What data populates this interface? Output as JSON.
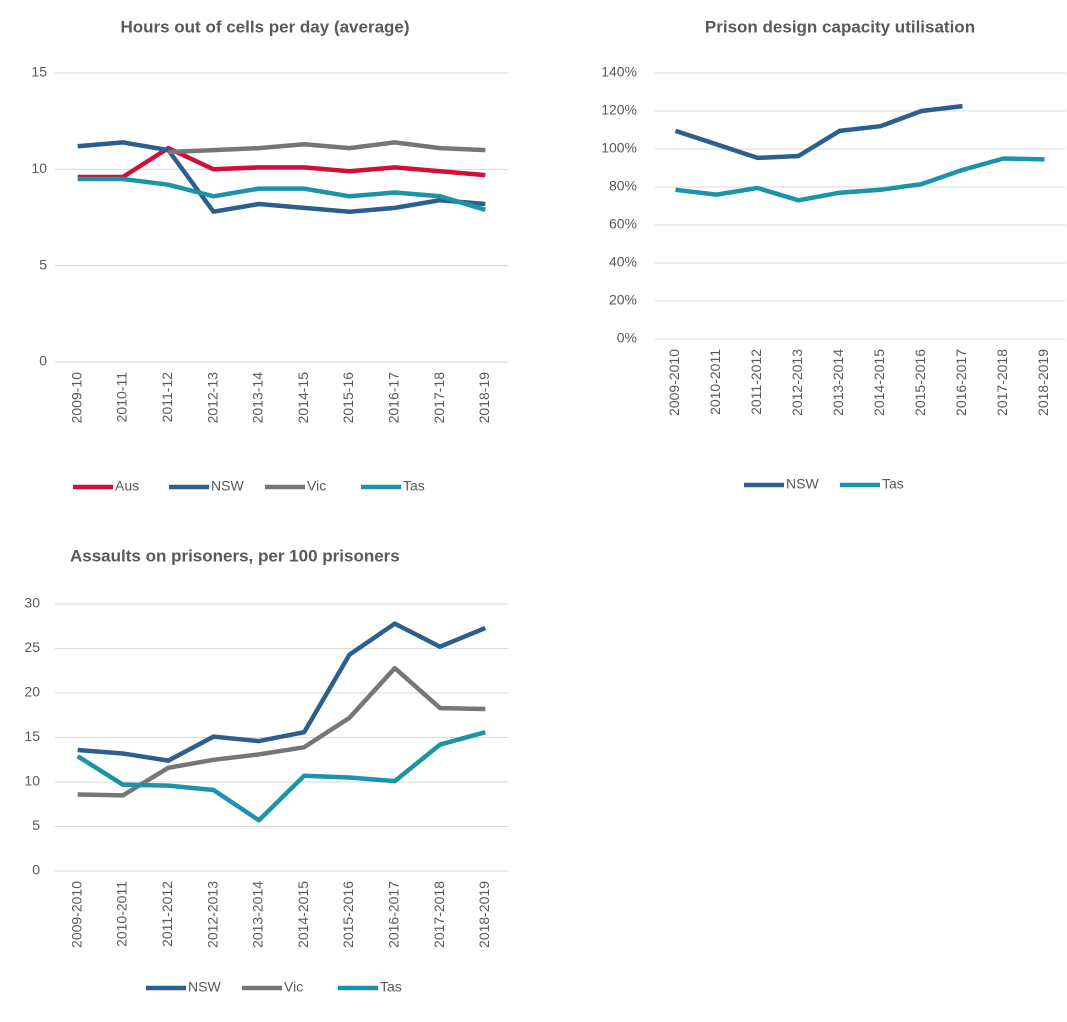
{
  "chart_data": [
    {
      "type": "line",
      "title": "Hours out of cells per day (average)",
      "categories": [
        "2009-10",
        "2010-11",
        "2011-12",
        "2012-13",
        "2013-14",
        "2014-15",
        "2015-16",
        "2016-17",
        "2017-18",
        "2018-19"
      ],
      "ylim": [
        0,
        15
      ],
      "yticks": [
        0,
        5,
        10,
        15
      ],
      "grid": true,
      "legend": "bottom",
      "series": [
        {
          "name": "Aus",
          "color": "#d0103a",
          "values": [
            9.6,
            9.6,
            11.1,
            10.0,
            10.1,
            10.1,
            9.9,
            10.1,
            9.9,
            9.7
          ]
        },
        {
          "name": "NSW",
          "color": "#2d5f8e",
          "values": [
            11.2,
            11.4,
            11.0,
            7.8,
            8.2,
            8.0,
            7.8,
            8.0,
            8.4,
            8.2
          ]
        },
        {
          "name": "Vic",
          "color": "#767676",
          "values": [
            null,
            null,
            10.9,
            11.0,
            11.1,
            11.3,
            11.1,
            11.4,
            11.1,
            11.0
          ]
        },
        {
          "name": "Tas",
          "color": "#1b93a8",
          "values": [
            9.5,
            9.5,
            9.2,
            8.6,
            9.0,
            9.0,
            8.6,
            8.8,
            8.6,
            7.9
          ]
        }
      ]
    },
    {
      "type": "line",
      "title": "Prison design capacity utilisation",
      "categories": [
        "2009-2010",
        "2010-2011",
        "2011-2012",
        "2012-2013",
        "2013-2014",
        "2014-2015",
        "2015-2016",
        "2016-2017",
        "2017-2018",
        "2018-2019"
      ],
      "ylim": [
        0,
        140
      ],
      "yticks": [
        {
          "value": 0,
          "label": "0%"
        },
        {
          "value": 20,
          "label": "20%"
        },
        {
          "value": 40,
          "label": "40%"
        },
        {
          "value": 60,
          "label": "60%"
        },
        {
          "value": 80,
          "label": "80%"
        },
        {
          "value": 100,
          "label": "100%"
        },
        {
          "value": 120,
          "label": "120%"
        },
        {
          "value": 140,
          "label": "140%"
        }
      ],
      "grid": true,
      "legend": "bottom",
      "series": [
        {
          "name": "NSW",
          "color": "#2d5f8e",
          "values": [
            109.5,
            102.5,
            95.3,
            96.3,
            109.5,
            112,
            120,
            122.6,
            null,
            null
          ]
        },
        {
          "name": "Tas",
          "color": "#1b93a8",
          "values": [
            78.5,
            76,
            79.5,
            73,
            77,
            78.5,
            81.5,
            89,
            95,
            94.5
          ]
        }
      ]
    },
    {
      "type": "line",
      "title": "Assaults on prisoners, per 100 prisoners",
      "categories": [
        "2009-2010",
        "2010-2011",
        "2011-2012",
        "2012-2013",
        "2013-2014",
        "2014-2015",
        "2015-2016",
        "2016-2017",
        "2017-2018",
        "2018-2019"
      ],
      "ylim": [
        0,
        30
      ],
      "yticks": [
        0,
        5,
        10,
        15,
        20,
        25,
        30
      ],
      "grid": true,
      "legend": "bottom",
      "series": [
        {
          "name": "NSW",
          "color": "#2d5f8e",
          "values": [
            13.6,
            13.2,
            12.4,
            15.1,
            14.6,
            15.6,
            24.3,
            27.8,
            25.2,
            27.3
          ]
        },
        {
          "name": "Vic",
          "color": "#767676",
          "values": [
            8.6,
            8.5,
            11.6,
            12.5,
            13.1,
            13.9,
            17.2,
            22.8,
            18.3,
            18.2
          ]
        },
        {
          "name": "Tas",
          "color": "#1b93a8",
          "values": [
            12.9,
            9.7,
            9.6,
            9.1,
            5.7,
            10.7,
            10.5,
            10.1,
            14.2,
            15.6
          ]
        }
      ]
    }
  ]
}
